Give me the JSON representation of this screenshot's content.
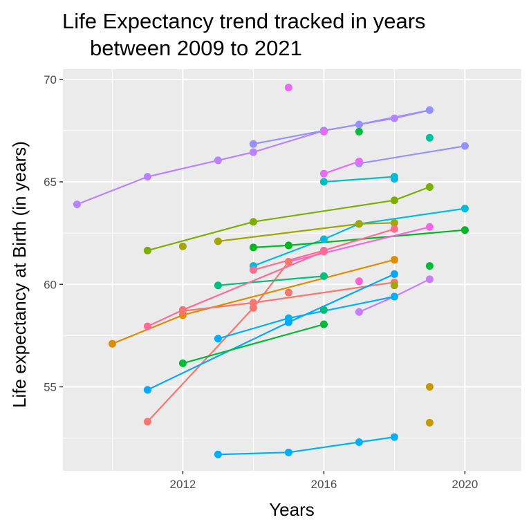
{
  "chart_data": {
    "type": "line",
    "title_lines": [
      "Life Expectancy trend tracked in years",
      "between 2009 to 2021"
    ],
    "xlabel": "Years",
    "ylabel": "Life expectancy at Birth (in years)",
    "xlim": [
      2008.6,
      2021.6
    ],
    "ylim": [
      50.9,
      70.5
    ],
    "x_ticks": [
      2012,
      2016,
      2020
    ],
    "y_ticks": [
      55,
      60,
      65,
      70
    ],
    "grid": true,
    "legend": "none",
    "panel_background": "#ebebeb",
    "grid_color": "#ffffff",
    "series": [
      {
        "color": "#B983FF",
        "points": [
          [
            2009,
            63.9
          ],
          [
            2011,
            65.25
          ],
          [
            2013,
            66.05
          ],
          [
            2014,
            66.45
          ],
          [
            2016,
            67.5
          ],
          [
            2018,
            68.1
          ],
          [
            2019,
            68.5
          ]
        ],
        "line": true
      },
      {
        "color": "#9590FF",
        "points": [
          [
            2014,
            66.85
          ],
          [
            2016,
            67.5
          ],
          [
            2017,
            67.8
          ],
          [
            2019,
            68.5
          ]
        ],
        "line": true
      },
      {
        "color": "#9590FF",
        "points": [
          [
            2017,
            65.9
          ],
          [
            2020,
            66.75
          ]
        ],
        "line": true
      },
      {
        "color": "#E76BF3",
        "points": [
          [
            2016,
            65.4
          ],
          [
            2017,
            66.0
          ]
        ],
        "line": true
      },
      {
        "color": "#E76BF3",
        "points": [
          [
            2015,
            69.6
          ]
        ],
        "line": false
      },
      {
        "color": "#E76BF3",
        "points": [
          [
            2016,
            67.45
          ]
        ],
        "line": false
      },
      {
        "color": "#00BA38",
        "points": [
          [
            2017,
            67.45
          ]
        ],
        "line": false
      },
      {
        "color": "#00C19F",
        "points": [
          [
            2019,
            67.15
          ]
        ],
        "line": false
      },
      {
        "color": "#00BFC4",
        "points": [
          [
            2016,
            65.0
          ],
          [
            2018,
            65.25
          ]
        ],
        "line": true
      },
      {
        "color": "#00B9E3",
        "points": [
          [
            2018,
            65.15
          ]
        ],
        "line": false
      },
      {
        "color": "#7CAE00",
        "points": [
          [
            2011,
            61.65
          ],
          [
            2014,
            63.05
          ],
          [
            2018,
            64.1
          ],
          [
            2019,
            64.75
          ]
        ],
        "line": true
      },
      {
        "color": "#00BBDE",
        "points": [
          [
            2014,
            60.9
          ],
          [
            2016,
            62.2
          ],
          [
            2017,
            62.95
          ],
          [
            2020,
            63.7
          ]
        ],
        "line": true
      },
      {
        "color": "#A3A500",
        "points": [
          [
            2013,
            62.1
          ],
          [
            2017,
            62.95
          ],
          [
            2018,
            63.0
          ]
        ],
        "line": true
      },
      {
        "color": "#A3A500",
        "points": [
          [
            2012,
            61.85
          ]
        ],
        "line": false
      },
      {
        "color": "#00B81F",
        "points": [
          [
            2014,
            61.8
          ],
          [
            2015,
            61.9
          ],
          [
            2020,
            62.65
          ]
        ],
        "line": true
      },
      {
        "color": "#FF6C91",
        "points": [
          [
            2014,
            60.7
          ],
          [
            2016,
            61.65
          ],
          [
            2018,
            62.7
          ]
        ],
        "line": true
      },
      {
        "color": "#F564E3",
        "points": [
          [
            2015,
            61.1
          ],
          [
            2019,
            62.8
          ]
        ],
        "line": true
      },
      {
        "color": "#F8766D",
        "points": [
          [
            2011,
            53.3
          ],
          [
            2014,
            58.85
          ],
          [
            2015,
            61.1
          ]
        ],
        "line": true
      },
      {
        "color": "#00BF7D",
        "points": [
          [
            2013,
            59.95
          ],
          [
            2016,
            60.4
          ]
        ],
        "line": true
      },
      {
        "color": "#00BA38",
        "points": [
          [
            2019,
            60.9
          ]
        ],
        "line": false
      },
      {
        "color": "#DE8C00",
        "points": [
          [
            2010,
            57.1
          ],
          [
            2012,
            58.5
          ],
          [
            2018,
            61.2
          ]
        ],
        "line": true
      },
      {
        "color": "#FF6A98",
        "points": [
          [
            2011,
            57.95
          ],
          [
            2012,
            58.75
          ],
          [
            2016,
            61.6
          ]
        ],
        "line": true
      },
      {
        "color": "#FD61D1",
        "points": [
          [
            2017,
            60.15
          ]
        ],
        "line": false
      },
      {
        "color": "#F8766D",
        "points": [
          [
            2012,
            58.7
          ],
          [
            2014,
            59.1
          ],
          [
            2018,
            60.1
          ]
        ],
        "line": true
      },
      {
        "color": "#F4766E",
        "points": [
          [
            2015,
            59.6
          ]
        ],
        "line": false
      },
      {
        "color": "#A3A500",
        "points": [
          [
            2018,
            59.95
          ]
        ],
        "line": false
      },
      {
        "color": "#C77CFF",
        "points": [
          [
            2017,
            58.65
          ],
          [
            2018,
            59.4
          ],
          [
            2019,
            60.25
          ]
        ],
        "line": true
      },
      {
        "color": "#00A9FF",
        "points": [
          [
            2011,
            54.85
          ],
          [
            2015,
            58.15
          ],
          [
            2018,
            60.5
          ]
        ],
        "line": true
      },
      {
        "color": "#00B0F6",
        "points": [
          [
            2013,
            57.35
          ],
          [
            2015,
            58.35
          ],
          [
            2018,
            59.4
          ]
        ],
        "line": true
      },
      {
        "color": "#00BF7D",
        "points": [
          [
            2016,
            58.75
          ]
        ],
        "line": false
      },
      {
        "color": "#00BA38",
        "points": [
          [
            2012,
            56.15
          ],
          [
            2016,
            58.05
          ]
        ],
        "line": true
      },
      {
        "color": "#C49A00",
        "points": [
          [
            2019,
            55.0
          ]
        ],
        "line": false
      },
      {
        "color": "#C49A00",
        "points": [
          [
            2019,
            53.25
          ]
        ],
        "line": false
      },
      {
        "color": "#00B0F6",
        "points": [
          [
            2013,
            51.7
          ],
          [
            2015,
            51.8
          ],
          [
            2017,
            52.3
          ],
          [
            2018,
            52.55
          ]
        ],
        "line": true
      }
    ]
  }
}
